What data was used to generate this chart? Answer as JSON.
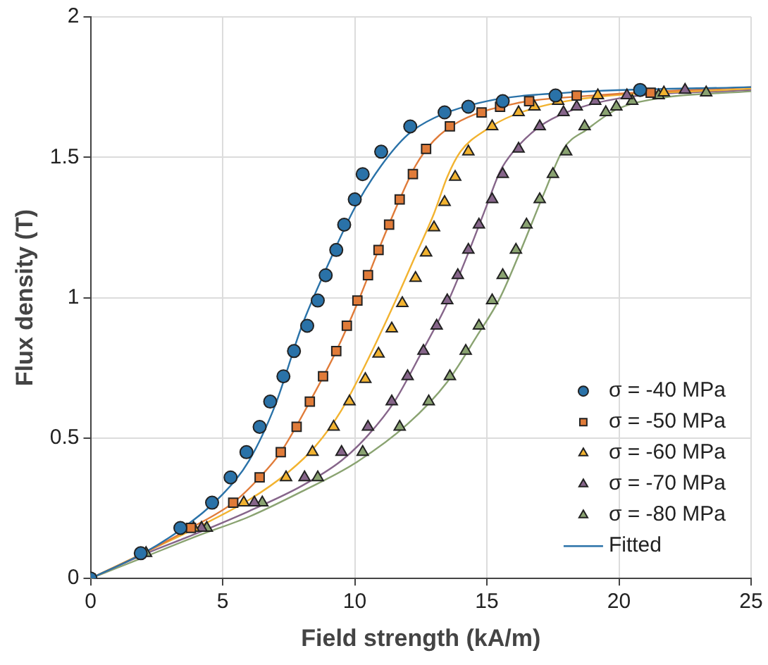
{
  "chart_data": {
    "type": "scatter",
    "xlabel": "Field strength (kA/m)",
    "ylabel": "Flux density (T)",
    "xlim": [
      0,
      25
    ],
    "xticks": [
      0,
      5,
      10,
      15,
      20,
      25
    ],
    "ylim": [
      0,
      2
    ],
    "yticks": [
      0,
      0.5,
      1,
      1.5,
      2
    ],
    "grid": true,
    "legend": "bottom right",
    "series": [
      {
        "name": "σ = -40 MPa",
        "marker": "circle",
        "color": "#2a72a8",
        "x": [
          0,
          1.9,
          3.4,
          4.6,
          5.3,
          5.9,
          6.4,
          6.8,
          7.3,
          7.7,
          8.2,
          8.6,
          8.9,
          9.3,
          9.6,
          10,
          10.3,
          11,
          12.1,
          13.4,
          14.3,
          15.6,
          17.6,
          20.8
        ],
        "values": [
          0,
          0.09,
          0.18,
          0.27,
          0.36,
          0.45,
          0.54,
          0.63,
          0.72,
          0.81,
          0.9,
          0.99,
          1.08,
          1.17,
          1.26,
          1.35,
          1.44,
          1.52,
          1.61,
          1.66,
          1.68,
          1.7,
          1.72,
          1.74
        ]
      },
      {
        "name": "σ = -50 MPa",
        "marker": "square",
        "color": "#e07b39",
        "x": [
          0,
          3.8,
          5.4,
          6.4,
          7.2,
          7.8,
          8.3,
          8.8,
          9.3,
          9.7,
          10.1,
          10.5,
          10.9,
          11.3,
          11.7,
          12.2,
          12.7,
          13.6,
          14.8,
          15.5,
          16.6,
          18.4,
          21.2
        ],
        "values": [
          0,
          0.18,
          0.27,
          0.36,
          0.45,
          0.54,
          0.63,
          0.72,
          0.81,
          0.9,
          0.99,
          1.08,
          1.17,
          1.26,
          1.35,
          1.44,
          1.53,
          1.61,
          1.66,
          1.68,
          1.7,
          1.72,
          1.73
        ]
      },
      {
        "name": "σ = -60 MPa",
        "marker": "triangle",
        "color": "#f2b330",
        "x": [
          0,
          3.9,
          5.8,
          7.4,
          8.4,
          9.2,
          9.8,
          10.4,
          10.9,
          11.4,
          11.8,
          12.3,
          12.7,
          13,
          13.4,
          13.8,
          14.3,
          15.2,
          16.2,
          16.8,
          17.7,
          19.2,
          21.7
        ],
        "values": [
          0,
          0.18,
          0.27,
          0.36,
          0.45,
          0.54,
          0.63,
          0.71,
          0.8,
          0.89,
          0.98,
          1.07,
          1.16,
          1.25,
          1.34,
          1.43,
          1.52,
          1.61,
          1.66,
          1.68,
          1.7,
          1.72,
          1.73
        ]
      },
      {
        "name": "σ = -70 MPa",
        "marker": "triangle",
        "color": "#86658a",
        "x": [
          4.2,
          6.2,
          8.1,
          9.5,
          10.5,
          11.4,
          12,
          12.6,
          13.1,
          13.5,
          13.9,
          14.3,
          14.7,
          15.2,
          15.6,
          16.2,
          17,
          17.9,
          18.4,
          19.1,
          20.3,
          22.5
        ],
        "values": [
          0.18,
          0.27,
          0.36,
          0.45,
          0.54,
          0.63,
          0.72,
          0.81,
          0.9,
          0.99,
          1.08,
          1.17,
          1.26,
          1.35,
          1.44,
          1.53,
          1.61,
          1.66,
          1.68,
          1.7,
          1.72,
          1.74
        ]
      },
      {
        "name": "σ = -80 MPa",
        "marker": "triangle",
        "color": "#8aa371",
        "x": [
          2.1,
          4.4,
          6.5,
          8.6,
          10.3,
          11.7,
          12.8,
          13.6,
          14.2,
          14.7,
          15.2,
          15.6,
          16.1,
          16.5,
          17,
          17.5,
          18,
          18.7,
          19.5,
          19.9,
          20.5,
          21.5,
          23.3
        ],
        "values": [
          0.09,
          0.18,
          0.27,
          0.36,
          0.45,
          0.54,
          0.63,
          0.72,
          0.81,
          0.9,
          0.99,
          1.08,
          1.17,
          1.26,
          1.35,
          1.44,
          1.52,
          1.61,
          1.66,
          1.68,
          1.7,
          1.72,
          1.73
        ]
      },
      {
        "name": "Fitted",
        "type": "line",
        "marker": "none",
        "color": "#2a72a8",
        "x": [
          0,
          2,
          3.5,
          5,
          6,
          7,
          8,
          9,
          10,
          11,
          12,
          13,
          15,
          18,
          25
        ],
        "values": [
          0,
          0.09,
          0.18,
          0.3,
          0.42,
          0.62,
          0.9,
          1.12,
          1.32,
          1.47,
          1.58,
          1.64,
          1.7,
          1.73,
          1.75
        ]
      },
      {
        "type": "line",
        "marker": "none",
        "color": "#e07b39",
        "x": [
          0,
          2,
          3.8,
          5.4,
          6.4,
          7.2,
          8.3,
          9.3,
          10.1,
          10.9,
          11.7,
          12.3,
          13,
          14,
          16,
          19,
          25
        ],
        "values": [
          0,
          0.09,
          0.18,
          0.27,
          0.36,
          0.45,
          0.63,
          0.81,
          0.98,
          1.17,
          1.35,
          1.47,
          1.56,
          1.63,
          1.69,
          1.72,
          1.75
        ]
      },
      {
        "type": "line",
        "marker": "none",
        "color": "#f2b330",
        "x": [
          0,
          2,
          4,
          6,
          7.5,
          8.5,
          9.5,
          10.5,
          11.5,
          12.3,
          13,
          13.5,
          14,
          15,
          16,
          18,
          25
        ],
        "values": [
          0,
          0.09,
          0.18,
          0.28,
          0.38,
          0.47,
          0.6,
          0.78,
          0.98,
          1.15,
          1.3,
          1.43,
          1.52,
          1.6,
          1.65,
          1.7,
          1.745
        ]
      },
      {
        "type": "line",
        "marker": "none",
        "color": "#86658a",
        "x": [
          0,
          2,
          4,
          6,
          8,
          9.5,
          10.5,
          11.5,
          12.5,
          13.5,
          14.3,
          15,
          15.5,
          16,
          17,
          18,
          20,
          25
        ],
        "values": [
          0,
          0.085,
          0.16,
          0.24,
          0.33,
          0.42,
          0.51,
          0.63,
          0.8,
          0.98,
          1.16,
          1.33,
          1.45,
          1.52,
          1.61,
          1.66,
          1.71,
          1.74
        ]
      },
      {
        "type": "line",
        "marker": "none",
        "color": "#8aa371",
        "x": [
          0,
          2,
          4,
          6,
          8,
          10,
          12,
          13.5,
          14.6,
          15.5,
          16.2,
          17.2,
          17.9,
          18.8,
          19.9,
          21.5,
          25
        ],
        "values": [
          0,
          0.075,
          0.15,
          0.22,
          0.31,
          0.41,
          0.55,
          0.7,
          0.86,
          1,
          1.15,
          1.38,
          1.53,
          1.6,
          1.67,
          1.71,
          1.735
        ]
      }
    ]
  }
}
